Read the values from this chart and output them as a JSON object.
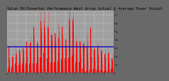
{
  "title": "Solar PV/Inverter Performance West Array Actual & Average Power Output",
  "fig_bg_color": "#696969",
  "plot_bg_color": "#a0a0a0",
  "bar_color": "#ff0000",
  "avg_line_color": "#0000cc",
  "avg_line_y": 0.42,
  "ylim": [
    0,
    7.5
  ],
  "ytick_labels": [
    "",
    "1",
    "2",
    "3",
    "4",
    "5",
    "6",
    "7",
    ""
  ],
  "ytick_vals": [
    0,
    1,
    2,
    3,
    4,
    5,
    6,
    7,
    7.5
  ],
  "title_fontsize": 3.8,
  "tick_fontsize": 3.2,
  "num_days": 30,
  "samples_per_day": 20
}
